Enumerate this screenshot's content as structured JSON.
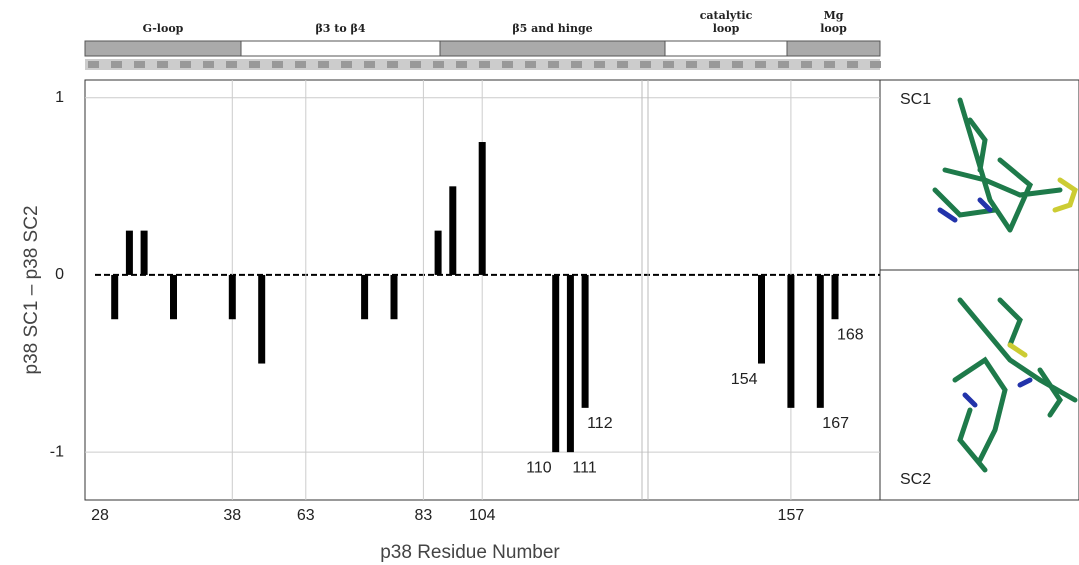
{
  "chart_data": {
    "type": "bar",
    "y_label": "p38 SC1 – p38 SC2",
    "x_label": "p38 Residue Number",
    "regions": [
      {
        "label": "G-loop",
        "shaded": true
      },
      {
        "label": "β3 to β4",
        "shaded": false
      },
      {
        "label": "β5 and hinge",
        "shaded": true
      },
      {
        "label": "catalytic loop",
        "shaded": false
      },
      {
        "label": "Mg loop",
        "shaded": true
      }
    ],
    "categories": [
      "28",
      null,
      null,
      null,
      null,
      null,
      null,
      null,
      null,
      "38",
      null,
      null,
      null,
      null,
      "63",
      null,
      null,
      null,
      null,
      null,
      null,
      null,
      "83",
      null,
      null,
      null,
      "104",
      null,
      null,
      null,
      null,
      null,
      null,
      null,
      null,
      null,
      null,
      null,
      null,
      null,
      null,
      null,
      null,
      null,
      null,
      null,
      null,
      "157",
      null,
      null,
      null,
      null,
      null,
      null
    ],
    "values": [
      null,
      -0.25,
      0.25,
      0.25,
      null,
      -0.25,
      null,
      null,
      null,
      -0.25,
      null,
      -0.5,
      null,
      null,
      null,
      null,
      null,
      null,
      -0.25,
      null,
      -0.25,
      null,
      null,
      0.25,
      0.5,
      null,
      0.75,
      null,
      null,
      null,
      null,
      -1,
      -1,
      -0.75,
      null,
      null,
      null,
      null,
      null,
      null,
      null,
      null,
      null,
      null,
      null,
      -0.5,
      null,
      -0.75,
      null,
      -0.75,
      -0.25,
      null,
      null,
      null
    ],
    "bar_labels": [
      null,
      null,
      null,
      null,
      null,
      null,
      null,
      null,
      null,
      null,
      null,
      null,
      null,
      null,
      null,
      null,
      null,
      null,
      null,
      null,
      null,
      null,
      null,
      null,
      null,
      null,
      null,
      null,
      null,
      null,
      null,
      "110",
      "111",
      "112",
      null,
      null,
      null,
      null,
      null,
      null,
      null,
      null,
      null,
      null,
      null,
      "154",
      null,
      null,
      null,
      "167",
      "168",
      null,
      null,
      null
    ],
    "color": "#000000",
    "ylim": [
      -1.27,
      1.1
    ],
    "yticks": [
      -1,
      0,
      1
    ],
    "grid": true,
    "panels": [
      "SC1",
      "SC2"
    ]
  }
}
